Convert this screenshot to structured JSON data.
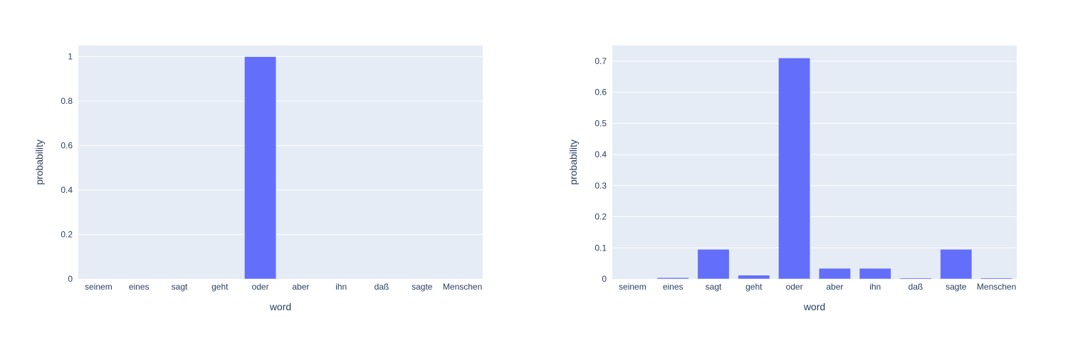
{
  "colors": {
    "bar": "#636efa",
    "plot_bg": "#e5ecf6",
    "grid": "#ffffff",
    "text": "#2a3f5f"
  },
  "chart_data": [
    {
      "type": "bar",
      "title": "",
      "xlabel": "word",
      "ylabel": "probability",
      "categories": [
        "seinem",
        "eines",
        "sagt",
        "geht",
        "oder",
        "aber",
        "ihn",
        "daß",
        "sagte",
        "Menschen"
      ],
      "values": [
        0,
        0,
        0,
        0,
        1.0,
        0,
        0,
        0,
        0,
        0
      ],
      "ylim": [
        0,
        1.05
      ],
      "yticks": [
        0,
        0.2,
        0.4,
        0.6,
        0.8,
        1
      ],
      "ytick_labels": [
        "0",
        "0.2",
        "0.4",
        "0.6",
        "0.8",
        "1"
      ],
      "grid": true,
      "legend": "none"
    },
    {
      "type": "bar",
      "title": "",
      "xlabel": "word",
      "ylabel": "probability",
      "categories": [
        "seinem",
        "eines",
        "sagt",
        "geht",
        "oder",
        "aber",
        "ihn",
        "daß",
        "sagte",
        "Menschen"
      ],
      "values": [
        0.001,
        0.004,
        0.095,
        0.012,
        0.71,
        0.034,
        0.034,
        0.003,
        0.095,
        0.003
      ],
      "ylim": [
        0,
        0.75
      ],
      "yticks": [
        0,
        0.1,
        0.2,
        0.3,
        0.4,
        0.5,
        0.6,
        0.7
      ],
      "ytick_labels": [
        "0",
        "0.1",
        "0.2",
        "0.3",
        "0.4",
        "0.5",
        "0.6",
        "0.7"
      ],
      "grid": true,
      "legend": "none"
    }
  ]
}
